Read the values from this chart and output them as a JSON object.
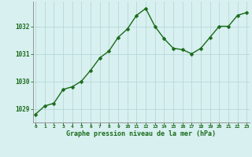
{
  "x": [
    0,
    1,
    2,
    3,
    4,
    5,
    6,
    7,
    8,
    9,
    10,
    11,
    12,
    13,
    14,
    15,
    16,
    17,
    18,
    19,
    20,
    21,
    22,
    23
  ],
  "y": [
    1028.8,
    1029.1,
    1029.2,
    1029.7,
    1029.8,
    1030.0,
    1030.4,
    1030.85,
    1031.1,
    1031.6,
    1031.9,
    1032.4,
    1032.65,
    1032.0,
    1031.55,
    1031.2,
    1031.15,
    1031.0,
    1031.2,
    1031.6,
    1032.0,
    1032.0,
    1032.4,
    1032.5
  ],
  "line_color": "#1a6b1a",
  "marker_color": "#1a6b1a",
  "bg_color": "#d8f0f0",
  "grid_color": "#b8d8d8",
  "axis_label_color": "#1a6b1a",
  "tick_color": "#1a6b1a",
  "xlabel": "Graphe pression niveau de la mer (hPa)",
  "ylim": [
    1028.5,
    1032.9
  ],
  "yticks": [
    1029,
    1030,
    1031,
    1032
  ],
  "xticks": [
    0,
    1,
    2,
    3,
    4,
    5,
    6,
    7,
    8,
    9,
    10,
    11,
    12,
    13,
    14,
    15,
    16,
    17,
    18,
    19,
    20,
    21,
    22,
    23
  ],
  "marker_size": 2.5,
  "line_width": 1.0
}
